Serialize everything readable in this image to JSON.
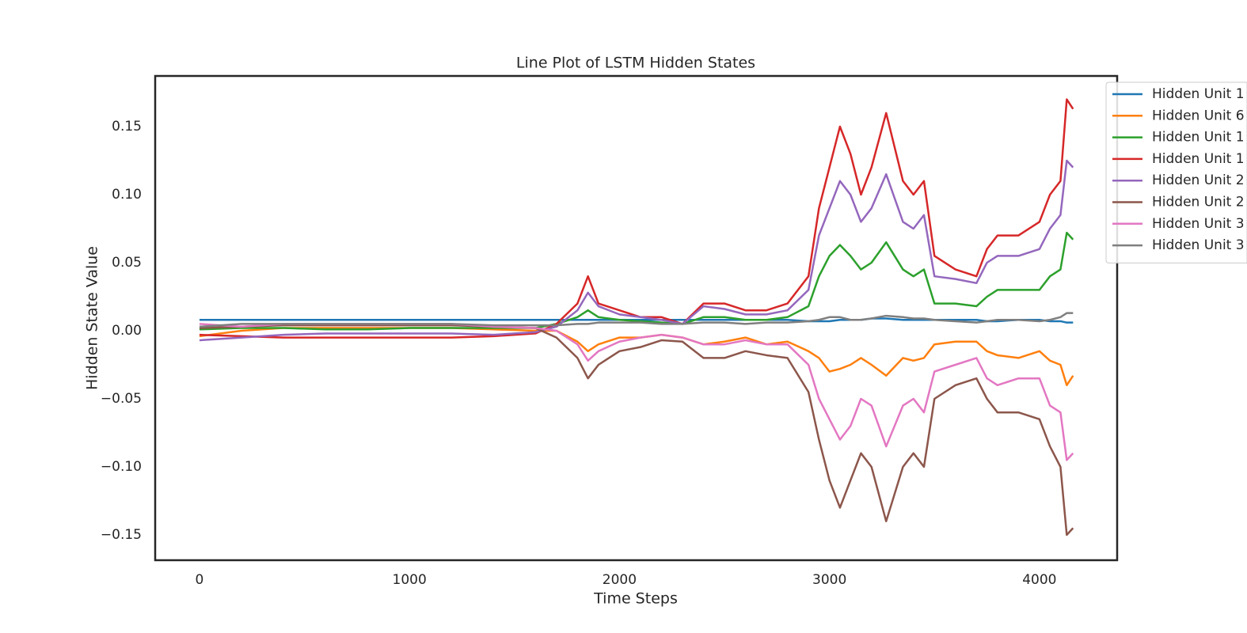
{
  "chart_data": {
    "type": "line",
    "title": "Line Plot of LSTM Hidden States",
    "x_label": "Time Steps",
    "y_label": "Hidden State Value",
    "x": [
      0,
      200,
      400,
      600,
      800,
      1000,
      1200,
      1400,
      1600,
      1700,
      1800,
      1850,
      1900,
      2000,
      2100,
      2200,
      2300,
      2400,
      2500,
      2600,
      2700,
      2800,
      2900,
      2950,
      3000,
      3050,
      3100,
      3150,
      3200,
      3270,
      3350,
      3400,
      3450,
      3500,
      3600,
      3700,
      3750,
      3800,
      3900,
      4000,
      4050,
      4100,
      4130,
      4160
    ],
    "xlim": [
      -211,
      4370
    ],
    "xticks": [
      0,
      1000,
      2000,
      3000,
      4000
    ],
    "ylim": [
      -0.1686,
      0.1872
    ],
    "yticks": [
      {
        "value": -0.15,
        "label": "−0.15"
      },
      {
        "value": -0.1,
        "label": "−0.10"
      },
      {
        "value": -0.05,
        "label": "−0.05"
      },
      {
        "value": 0,
        "label": "0.00"
      },
      0.05,
      {
        "value": 0.1,
        "label": "0.10"
      },
      0.15
    ],
    "grid": false,
    "legend": "upper right",
    "series": [
      {
        "name": "Hidden Unit 1",
        "color": "#1f77b4",
        "values": [
          0.008,
          0.008,
          0.008,
          0.008,
          0.008,
          0.008,
          0.008,
          0.008,
          0.008,
          0.008,
          0.008,
          0.008,
          0.008,
          0.008,
          0.008,
          0.008,
          0.008,
          0.008,
          0.008,
          0.008,
          0.008,
          0.008,
          0.007,
          0.007,
          0.007,
          0.008,
          0.008,
          0.008,
          0.009,
          0.009,
          0.008,
          0.008,
          0.008,
          0.008,
          0.008,
          0.008,
          0.007,
          0.007,
          0.008,
          0.008,
          0.007,
          0.007,
          0.006,
          0.006
        ]
      },
      {
        "name": "Hidden Unit 6",
        "color": "#ff7f0e",
        "values": [
          -0.004,
          0.0,
          0.002,
          0.002,
          0.002,
          0.002,
          0.002,
          0.001,
          0.0,
          0.0,
          -0.008,
          -0.015,
          -0.01,
          -0.005,
          -0.005,
          -0.003,
          -0.005,
          -0.01,
          -0.008,
          -0.005,
          -0.01,
          -0.008,
          -0.015,
          -0.02,
          -0.03,
          -0.028,
          -0.025,
          -0.02,
          -0.025,
          -0.033,
          -0.02,
          -0.022,
          -0.02,
          -0.01,
          -0.008,
          -0.008,
          -0.015,
          -0.018,
          -0.02,
          -0.015,
          -0.022,
          -0.025,
          -0.04,
          -0.033
        ]
      },
      {
        "name": "Hidden Unit 1",
        "color": "#2ca02c",
        "values": [
          0.001,
          0.002,
          0.002,
          0.001,
          0.001,
          0.002,
          0.002,
          0.002,
          0.002,
          0.005,
          0.01,
          0.015,
          0.01,
          0.008,
          0.007,
          0.006,
          0.005,
          0.01,
          0.01,
          0.008,
          0.008,
          0.01,
          0.018,
          0.04,
          0.055,
          0.063,
          0.055,
          0.045,
          0.05,
          0.065,
          0.045,
          0.04,
          0.045,
          0.02,
          0.02,
          0.018,
          0.025,
          0.03,
          0.03,
          0.03,
          0.04,
          0.045,
          0.072,
          0.067
        ]
      },
      {
        "name": "Hidden Unit 1",
        "color": "#d62728",
        "values": [
          -0.003,
          -0.004,
          -0.005,
          -0.005,
          -0.005,
          -0.005,
          -0.005,
          -0.004,
          -0.002,
          0.005,
          0.02,
          0.04,
          0.02,
          0.015,
          0.01,
          0.01,
          0.005,
          0.02,
          0.02,
          0.015,
          0.015,
          0.02,
          0.04,
          0.09,
          0.12,
          0.15,
          0.13,
          0.1,
          0.12,
          0.16,
          0.11,
          0.1,
          0.11,
          0.055,
          0.045,
          0.04,
          0.06,
          0.07,
          0.07,
          0.08,
          0.1,
          0.11,
          0.17,
          0.163
        ]
      },
      {
        "name": "Hidden Unit 2",
        "color": "#9467bd",
        "values": [
          -0.007,
          -0.005,
          -0.003,
          -0.002,
          -0.002,
          -0.002,
          -0.002,
          -0.003,
          -0.001,
          0.003,
          0.015,
          0.028,
          0.018,
          0.012,
          0.01,
          0.008,
          0.005,
          0.018,
          0.016,
          0.012,
          0.012,
          0.015,
          0.03,
          0.07,
          0.09,
          0.11,
          0.1,
          0.08,
          0.09,
          0.115,
          0.08,
          0.075,
          0.085,
          0.04,
          0.038,
          0.035,
          0.05,
          0.055,
          0.055,
          0.06,
          0.075,
          0.085,
          0.125,
          0.12
        ]
      },
      {
        "name": "Hidden Unit 2",
        "color": "#8c564b",
        "values": [
          0.002,
          0.003,
          0.004,
          0.004,
          0.004,
          0.004,
          0.004,
          0.003,
          0.002,
          -0.005,
          -0.02,
          -0.035,
          -0.025,
          -0.015,
          -0.012,
          -0.007,
          -0.008,
          -0.02,
          -0.02,
          -0.015,
          -0.018,
          -0.02,
          -0.045,
          -0.08,
          -0.11,
          -0.13,
          -0.11,
          -0.09,
          -0.1,
          -0.14,
          -0.1,
          -0.09,
          -0.1,
          -0.05,
          -0.04,
          -0.035,
          -0.05,
          -0.06,
          -0.06,
          -0.065,
          -0.085,
          -0.1,
          -0.15,
          -0.145
        ]
      },
      {
        "name": "Hidden Unit 3",
        "color": "#e377c2",
        "values": [
          0.005,
          0.003,
          0.005,
          0.005,
          0.005,
          0.005,
          0.005,
          0.003,
          0.002,
          0.0,
          -0.01,
          -0.022,
          -0.015,
          -0.008,
          -0.005,
          -0.003,
          -0.005,
          -0.01,
          -0.01,
          -0.007,
          -0.01,
          -0.01,
          -0.025,
          -0.05,
          -0.065,
          -0.08,
          -0.07,
          -0.05,
          -0.055,
          -0.085,
          -0.055,
          -0.05,
          -0.06,
          -0.03,
          -0.025,
          -0.02,
          -0.035,
          -0.04,
          -0.035,
          -0.035,
          -0.055,
          -0.06,
          -0.095,
          -0.09
        ]
      },
      {
        "name": "Hidden Unit 3",
        "color": "#7f7f7f",
        "values": [
          0.003,
          0.005,
          0.005,
          0.005,
          0.005,
          0.005,
          0.005,
          0.004,
          0.004,
          0.004,
          0.005,
          0.005,
          0.006,
          0.006,
          0.006,
          0.005,
          0.005,
          0.006,
          0.006,
          0.005,
          0.006,
          0.006,
          0.007,
          0.008,
          0.01,
          0.01,
          0.008,
          0.008,
          0.009,
          0.011,
          0.01,
          0.009,
          0.009,
          0.008,
          0.007,
          0.006,
          0.007,
          0.008,
          0.008,
          0.007,
          0.008,
          0.01,
          0.013,
          0.013
        ]
      }
    ]
  }
}
